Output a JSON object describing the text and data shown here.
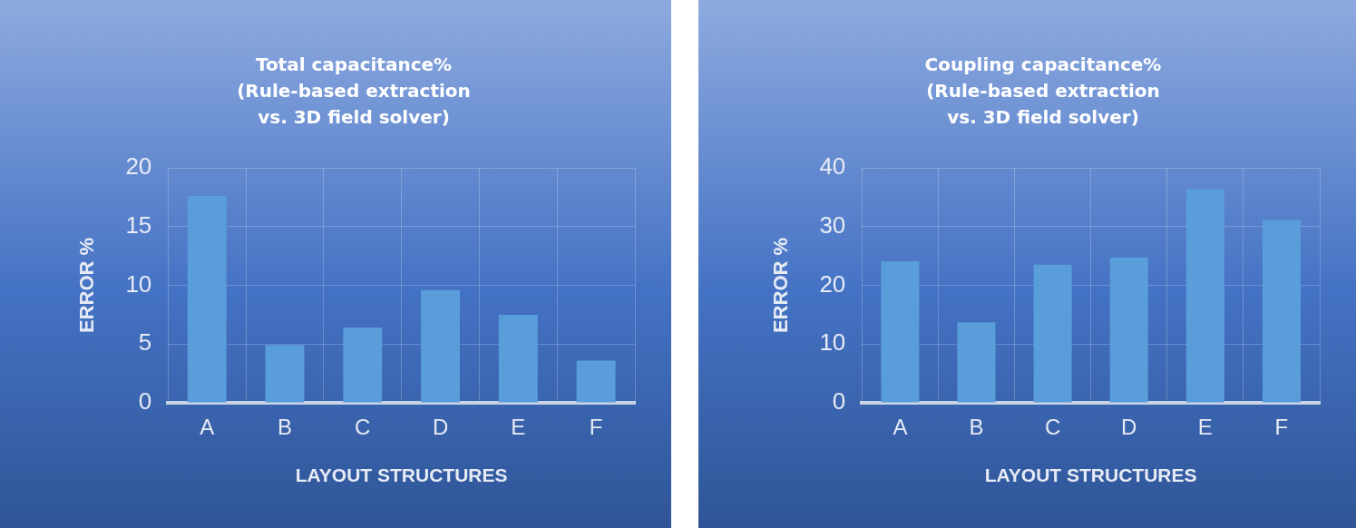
{
  "chart_data": [
    {
      "type": "bar",
      "title": "Total capacitance%\n(Rule-based extraction\nvs. 3D field solver)",
      "xlabel": "LAYOUT STRUCTURES",
      "ylabel": "ERROR %",
      "categories": [
        "A",
        "B",
        "C",
        "D",
        "E",
        "F"
      ],
      "values": [
        17.6,
        4.9,
        6.4,
        9.6,
        7.5,
        3.6
      ],
      "color": "#5a9ddb",
      "ylim": [
        0,
        20
      ],
      "yticks": [
        0,
        5,
        10,
        15,
        20
      ],
      "grid": true
    },
    {
      "type": "bar",
      "title": "Coupling capacitance%\n(Rule-based extraction\nvs. 3D field solver)",
      "xlabel": "LAYOUT STRUCTURES",
      "ylabel": "ERROR %",
      "categories": [
        "A",
        "B",
        "C",
        "D",
        "E",
        "F"
      ],
      "values": [
        24.1,
        13.7,
        23.5,
        24.7,
        36.4,
        31.1
      ],
      "color": "#5a9ddb",
      "ylim": [
        0,
        40
      ],
      "yticks": [
        0,
        10,
        20,
        30,
        40
      ],
      "grid": true
    }
  ]
}
